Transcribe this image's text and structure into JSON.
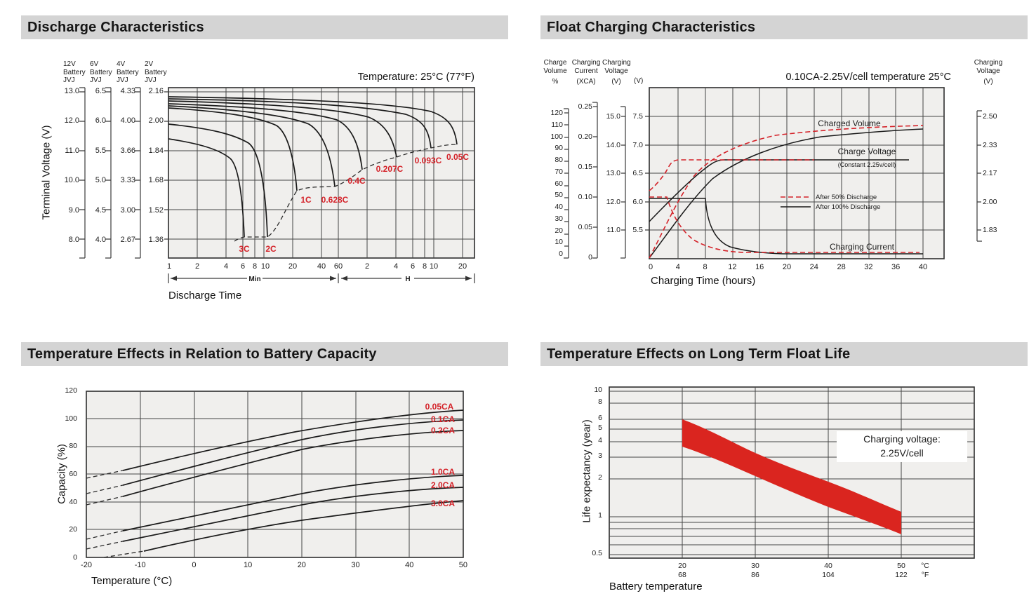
{
  "colors": {
    "accent_red": "#d4232a",
    "band_red": "#da251f",
    "header_bg": "#d4d4d4",
    "plot_bg": "#f0efed",
    "grid": "#454545",
    "curve": "#1a1a1a"
  },
  "discharge": {
    "title": "Discharge Characteristics",
    "temperature_note": "Temperature: 25°C (77°F)",
    "y_axis_label": "Terminal Voltage (V)",
    "x_axis_label": "Discharge Time",
    "range_min_label": "Min",
    "range_h_label": "H",
    "scale_headers": [
      [
        "12V",
        "Battery",
        "JVJ"
      ],
      [
        "6V",
        "Battery",
        "JVJ"
      ],
      [
        "4V",
        "Battery",
        "JVJ"
      ],
      [
        "2V",
        "Battery",
        "JVJ"
      ]
    ],
    "scale_12v": [
      "13.0",
      "12.0",
      "11.0",
      "10.0",
      "9.0",
      "8.0"
    ],
    "scale_6v": [
      "6.5",
      "6.0",
      "5.5",
      "5.0",
      "4.5",
      "4.0"
    ],
    "scale_4v": [
      "4.33",
      "4.00",
      "3.66",
      "3.33",
      "3.00",
      "2.67"
    ],
    "scale_2v": [
      "2.16",
      "2.00",
      "1.84",
      "1.68",
      "1.52",
      "1.36"
    ],
    "x_ticks_min": [
      "1",
      "2",
      "4",
      "6",
      "8",
      "10",
      "20",
      "40",
      "60"
    ],
    "x_ticks_h": [
      "2",
      "4",
      "6",
      "8",
      "10",
      "20"
    ],
    "curve_labels": [
      "3C",
      "2C",
      "1C",
      "0.628C",
      "0.4C",
      "0.207C",
      "0.093C",
      "0.05C"
    ]
  },
  "float_charging": {
    "title": "Float Charging Characteristics",
    "condition_note": "0.10CA-2.25V/cell  temperature 25°C",
    "x_axis_label": "Charging Time (hours)",
    "headers": {
      "volume": [
        "Charge",
        "Volume",
        "%"
      ],
      "current": [
        "Charging",
        "Current",
        "(XCA)"
      ],
      "voltage": [
        "Charging",
        "Voltage",
        "(V)"
      ],
      "v6": "(V)",
      "right": [
        "Charging",
        "Voltage",
        "(V)"
      ]
    },
    "volume_ticks": [
      "120",
      "110",
      "100",
      "90",
      "80",
      "70",
      "60",
      "50",
      "40",
      "30",
      "20",
      "10",
      "0"
    ],
    "current_ticks": [
      "0.25",
      "0.20",
      "0.15",
      "0.10",
      "0.05",
      "0"
    ],
    "voltage12_ticks": [
      "15.0",
      "14.0",
      "13.0",
      "12.0",
      "11.0"
    ],
    "voltage6_ticks": [
      "7.5",
      "7.0",
      "6.5",
      "6.0",
      "5.5"
    ],
    "right_ticks": [
      "2.50",
      "2.33",
      "2.17",
      "2.00",
      "1.83"
    ],
    "x_ticks": [
      "0",
      "4",
      "8",
      "12",
      "16",
      "20",
      "24",
      "28",
      "32",
      "36",
      "40"
    ],
    "labels": {
      "charged_volume": "Charged Volume",
      "charge_voltage": "Charge Voltage",
      "charge_voltage_sub": "(Constant 2.25v/cell)",
      "charging_current": "Charging Current"
    },
    "legend": [
      {
        "label": "After  50% Discharge",
        "style": "dashed-red"
      },
      {
        "label": "After 100% Discharge",
        "style": "solid-black"
      }
    ]
  },
  "temp_capacity": {
    "title": "Temperature Effects in Relation to Battery Capacity",
    "y_axis_label": "Capacity (%)",
    "x_axis_label": "Temperature (°C)",
    "y_ticks": [
      "120",
      "100",
      "80",
      "60",
      "40",
      "20",
      "0"
    ],
    "x_ticks": [
      "-20",
      "-10",
      "0",
      "10",
      "20",
      "30",
      "40",
      "50"
    ],
    "curve_labels": [
      "0.05CA",
      "0.1CA",
      "0.2CA",
      "1.0CA",
      "2.0CA",
      "3.0CA"
    ]
  },
  "float_life": {
    "title": "Temperature Effects on Long Term Float Life",
    "y_axis_label": "Life expectancy (year)",
    "x_axis_label": "Battery temperature",
    "y_ticks": [
      "10",
      "8",
      "6",
      "5",
      "4",
      "3",
      "2",
      "1",
      "0.5"
    ],
    "x_ticks_c": [
      "20",
      "30",
      "40",
      "50"
    ],
    "x_ticks_f": [
      "68",
      "86",
      "104",
      "122"
    ],
    "unit_c": "°C",
    "unit_f": "°F",
    "annotation_line1": "Charging voltage:",
    "annotation_line2": "2.25V/cell"
  },
  "chart_data": [
    {
      "type": "line",
      "title": "Discharge Characteristics",
      "temperature": "25°C (77°F)",
      "xlabel": "Discharge Time",
      "x_scale": "log",
      "x_ticks_minutes": [
        1,
        2,
        4,
        6,
        8,
        10,
        20,
        40,
        60
      ],
      "x_ticks_hours": [
        2,
        4,
        6,
        8,
        10,
        20
      ],
      "ylabel": "Terminal Voltage (V)",
      "y_scales": {
        "12V": [
          13.0,
          12.0,
          11.0,
          10.0,
          9.0,
          8.0
        ],
        "6V": [
          6.5,
          6.0,
          5.5,
          5.0,
          4.5,
          4.0
        ],
        "4V": [
          4.33,
          4.0,
          3.66,
          3.33,
          3.0,
          2.67
        ],
        "2V": [
          2.16,
          2.0,
          1.84,
          1.68,
          1.52,
          1.36
        ]
      },
      "series": [
        {
          "name": "3C",
          "points_min_vs_v_per_2v_cell": [
            [
              1,
              1.92
            ],
            [
              3,
              1.87
            ],
            [
              5,
              1.8
            ],
            [
              6.8,
              1.37
            ]
          ]
        },
        {
          "name": "2C",
          "points_min_vs_v_per_2v_cell": [
            [
              1,
              2.0
            ],
            [
              5,
              1.93
            ],
            [
              9,
              1.82
            ],
            [
              11,
              1.37
            ]
          ]
        },
        {
          "name": "1C",
          "points_min_vs_v_per_2v_cell": [
            [
              1,
              2.07
            ],
            [
              10,
              2.0
            ],
            [
              20,
              1.87
            ],
            [
              22,
              1.62
            ]
          ]
        },
        {
          "name": "0.628C",
          "points_min_vs_v_per_2v_cell": [
            [
              1,
              2.08
            ],
            [
              20,
              1.99
            ],
            [
              50,
              1.84
            ],
            [
              55,
              1.63
            ]
          ]
        },
        {
          "name": "0.4C",
          "points_min_vs_v_per_2v_cell": [
            [
              1,
              2.09
            ],
            [
              40,
              1.99
            ],
            [
              100,
              1.8
            ],
            [
              107,
              1.72
            ]
          ]
        },
        {
          "name": "0.207C",
          "points_min_vs_v_per_2v_cell": [
            [
              1,
              2.1
            ],
            [
              120,
              1.97
            ],
            [
              230,
              1.82
            ],
            [
              245,
              1.79
            ]
          ]
        },
        {
          "name": "0.093C",
          "points_min_vs_v_per_2v_cell": [
            [
              1,
              2.12
            ],
            [
              240,
              1.99
            ],
            [
              540,
              1.85
            ],
            [
              560,
              1.83
            ]
          ]
        },
        {
          "name": "0.05C",
          "points_min_vs_v_per_2v_cell": [
            [
              1,
              2.13
            ],
            [
              480,
              2.01
            ],
            [
              1100,
              1.87
            ],
            [
              1150,
              1.85
            ]
          ]
        }
      ],
      "annotation": "dashed cut-off voltage line links end-of-discharge points"
    },
    {
      "type": "line",
      "title": "Float Charging Characteristics",
      "condition": "0.10CA-2.25V/cell temperature 25°C",
      "xlabel": "Charging Time (hours)",
      "xlim": [
        0,
        43
      ],
      "x_ticks": [
        0,
        4,
        8,
        12,
        16,
        20,
        24,
        28,
        32,
        36,
        40
      ],
      "y_axes": {
        "charge_volume_pct": [
          0,
          120
        ],
        "charging_current_xca": [
          0,
          0.25
        ],
        "charging_voltage_12v": [
          11.0,
          15.0
        ],
        "charging_voltage_6v": [
          5.5,
          7.5
        ],
        "charging_voltage_per_cell": [
          1.83,
          2.5
        ]
      },
      "series": [
        {
          "name": "Charged Volume - After 50% Discharge",
          "style": "red-dashed",
          "points_h_vs_pct": [
            [
              0,
              0
            ],
            [
              4,
              55
            ],
            [
              8,
              80
            ],
            [
              16,
              96
            ],
            [
              24,
              104
            ],
            [
              36,
              109
            ]
          ]
        },
        {
          "name": "Charged Volume - After 100% Discharge",
          "style": "black-solid",
          "points_h_vs_pct": [
            [
              0,
              0
            ],
            [
              4,
              40
            ],
            [
              8,
              65
            ],
            [
              16,
              90
            ],
            [
              24,
              100
            ],
            [
              36,
              107
            ]
          ]
        },
        {
          "name": "Charge Voltage - After 50% Discharge",
          "style": "red-dashed",
          "points_h_vs_v_per_cell": [
            [
              0,
              2.07
            ],
            [
              2,
              2.15
            ],
            [
              3.8,
              2.25
            ],
            [
              26,
              2.25
            ]
          ]
        },
        {
          "name": "Charge Voltage - After 100% Discharge",
          "style": "black-solid",
          "points_h_vs_v_per_cell": [
            [
              0,
              1.88
            ],
            [
              4,
              2.07
            ],
            [
              8,
              2.21
            ],
            [
              10,
              2.25
            ],
            [
              38,
              2.25
            ]
          ]
        },
        {
          "name": "Charging Current - After 50% Discharge",
          "style": "red-dashed",
          "points_h_vs_xca": [
            [
              0,
              0.1
            ],
            [
              2.5,
              0.1
            ],
            [
              6,
              0.04
            ],
            [
              12,
              0.013
            ],
            [
              38,
              0.01
            ]
          ]
        },
        {
          "name": "Charging Current - After 100% Discharge",
          "style": "black-solid",
          "points_h_vs_xca": [
            [
              0,
              0.1
            ],
            [
              8,
              0.1
            ],
            [
              12,
              0.04
            ],
            [
              18,
              0.014
            ],
            [
              40,
              0.01
            ]
          ]
        }
      ],
      "labels": [
        "Charged Volume",
        "Charge Voltage",
        "(Constant 2.25v/cell)",
        "Charging Current"
      ],
      "legend": [
        "After 50% Discharge (red dashed)",
        "After 100% Discharge (black solid)"
      ]
    },
    {
      "type": "line",
      "title": "Temperature Effects in Relation to Battery Capacity",
      "xlabel": "Temperature (°C)",
      "ylabel": "Capacity (%)",
      "x": [
        -20,
        -10,
        0,
        10,
        20,
        30,
        40,
        50
      ],
      "ylim": [
        0,
        120
      ],
      "series": [
        {
          "name": "0.05CA",
          "values": [
            57,
            66,
            76,
            84,
            91,
            97,
            102,
            106
          ]
        },
        {
          "name": "0.1CA",
          "values": [
            46,
            57,
            67,
            77,
            85,
            91,
            96,
            99
          ]
        },
        {
          "name": "0.2CA",
          "values": [
            38,
            50,
            61,
            70,
            78,
            84,
            88,
            91
          ]
        },
        {
          "name": "1.0CA",
          "values": [
            13,
            22,
            31,
            39,
            46,
            52,
            56,
            59
          ]
        },
        {
          "name": "2.0CA",
          "values": [
            6,
            14,
            23,
            31,
            38,
            43,
            47,
            50
          ]
        },
        {
          "name": "3.0CA",
          "values": [
            null,
            5,
            12,
            20,
            27,
            33,
            38,
            41
          ]
        }
      ],
      "note": "curves dashed below about -15°C"
    },
    {
      "type": "area",
      "title": "Temperature Effects on Long Term Float Life",
      "xlabel": "Battery temperature",
      "ylabel": "Life expectancy (year)",
      "y_scale": "log",
      "y_ticks": [
        0.5,
        1,
        2,
        3,
        4,
        5,
        6,
        8,
        10
      ],
      "x_ticks_c": [
        20,
        30,
        40,
        50
      ],
      "x_ticks_f": [
        68,
        86,
        104,
        122
      ],
      "band_upper_years": [
        6.0,
        3.2,
        1.9,
        1.1
      ],
      "band_lower_years": [
        3.6,
        2.1,
        1.2,
        0.72
      ],
      "annotation": "Charging voltage: 2.25V/cell"
    }
  ]
}
